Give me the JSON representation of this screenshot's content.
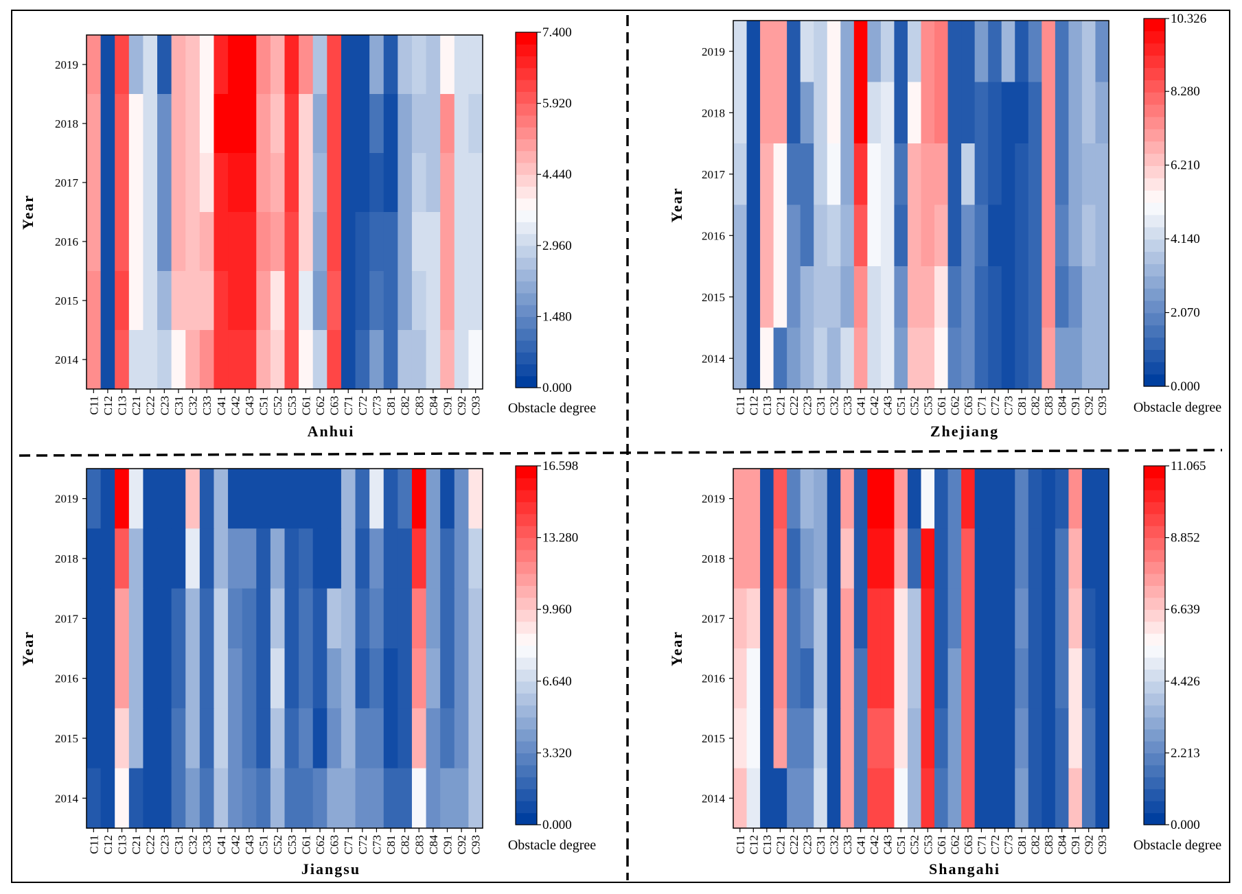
{
  "chart_data": [
    {
      "type": "heatmap",
      "title": "Anhui",
      "ylabel": "Year",
      "colorbar_label": "Obstacle degree",
      "colorbar_ticks": [
        "0.000",
        "1.480",
        "2.960",
        "4.440",
        "5.920",
        "7.400"
      ],
      "vmin": 0,
      "vmax": 7.4,
      "x": [
        "C11",
        "C12",
        "C13",
        "C21",
        "C22",
        "C23",
        "C31",
        "C32",
        "C33",
        "C41",
        "C42",
        "C43",
        "C51",
        "C52",
        "C53",
        "C61",
        "C62",
        "C63",
        "C71",
        "C72",
        "C73",
        "C81",
        "C82",
        "C83",
        "C84",
        "C91",
        "C92",
        "C93"
      ],
      "y": [
        "2019",
        "2018",
        "2017",
        "2016",
        "2015",
        "2014"
      ],
      "z": [
        [
          5.4,
          0.3,
          6.2,
          2.4,
          3.0,
          0.5,
          4.9,
          4.6,
          3.7,
          6.8,
          7.3,
          7.3,
          5.2,
          4.8,
          6.8,
          5.2,
          2.6,
          6.2,
          0.3,
          0.3,
          2.0,
          0.6,
          2.5,
          2.8,
          2.7,
          3.8,
          3.2,
          3.0
        ],
        [
          5.0,
          0.3,
          6.0,
          3.8,
          3.2,
          1.5,
          4.8,
          4.5,
          3.8,
          7.2,
          7.3,
          7.3,
          5.0,
          4.6,
          6.6,
          4.2,
          2.0,
          6.3,
          0.3,
          0.3,
          1.2,
          0.4,
          2.0,
          2.5,
          2.7,
          5.2,
          3.1,
          2.9
        ],
        [
          5.0,
          0.3,
          6.0,
          3.8,
          3.2,
          1.6,
          4.8,
          4.6,
          4.0,
          6.8,
          7.0,
          7.1,
          5.1,
          4.8,
          6.5,
          4.3,
          2.4,
          6.4,
          0.3,
          0.3,
          0.6,
          0.4,
          2.2,
          2.8,
          2.7,
          5.0,
          3.1,
          3.0
        ],
        [
          5.1,
          0.3,
          6.1,
          3.8,
          3.2,
          1.6,
          4.8,
          4.6,
          4.8,
          6.7,
          6.9,
          6.9,
          5.3,
          5.0,
          6.3,
          4.3,
          2.0,
          6.3,
          0.3,
          0.5,
          0.9,
          0.9,
          2.2,
          3.0,
          3.2,
          5.1,
          3.2,
          3.2
        ],
        [
          5.2,
          0.3,
          6.2,
          3.9,
          3.0,
          2.4,
          4.5,
          4.5,
          4.5,
          6.6,
          6.8,
          6.8,
          5.0,
          4.0,
          6.4,
          3.4,
          1.8,
          6.0,
          0.3,
          0.7,
          1.2,
          0.8,
          2.2,
          2.8,
          3.0,
          5.0,
          3.1,
          3.0
        ],
        [
          5.3,
          0.3,
          6.0,
          3.2,
          3.2,
          2.8,
          3.9,
          4.8,
          5.2,
          6.5,
          6.6,
          6.6,
          4.9,
          4.2,
          6.4,
          3.7,
          2.9,
          6.2,
          0.4,
          0.8,
          1.8,
          0.9,
          2.5,
          2.6,
          3.0,
          4.8,
          3.1,
          3.6
        ]
      ]
    },
    {
      "type": "heatmap",
      "title": "Zhejiang",
      "ylabel": "Year",
      "colorbar_label": "Obstacle degree",
      "colorbar_ticks": [
        "0.000",
        "2.070",
        "4.140",
        "6.210",
        "8.280",
        "10.326"
      ],
      "vmin": 0,
      "vmax": 10.326,
      "x": [
        "C11",
        "C12",
        "C13",
        "C21",
        "C22",
        "C23",
        "C31",
        "C32",
        "C33",
        "C41",
        "C42",
        "C43",
        "C51",
        "C52",
        "C53",
        "C61",
        "C62",
        "C63",
        "C71",
        "C72",
        "C73",
        "C81",
        "C82",
        "C83",
        "C84",
        "C91",
        "C92",
        "C93"
      ],
      "y": [
        "2019",
        "2018",
        "2017",
        "2016",
        "2015",
        "2014"
      ],
      "z": [
        [
          4.4,
          0.5,
          7.0,
          7.0,
          1.0,
          4.3,
          3.8,
          5.5,
          2.8,
          10.3,
          2.8,
          4.0,
          1.0,
          4.0,
          7.3,
          7.8,
          0.8,
          0.8,
          2.6,
          1.1,
          3.1,
          0.8,
          2.0,
          7.4,
          1.4,
          3.0,
          3.6,
          2.4
        ],
        [
          4.4,
          0.5,
          6.9,
          6.9,
          1.0,
          2.6,
          3.8,
          5.3,
          2.8,
          10.3,
          4.2,
          4.8,
          0.7,
          5.5,
          7.3,
          7.6,
          0.8,
          0.8,
          1.2,
          0.7,
          0.6,
          0.6,
          1.2,
          7.4,
          1.5,
          2.8,
          3.6,
          2.8
        ],
        [
          3.8,
          0.5,
          6.6,
          5.5,
          1.4,
          1.6,
          3.8,
          4.9,
          2.8,
          9.0,
          5.0,
          4.8,
          1.6,
          6.8,
          7.0,
          7.2,
          0.7,
          4.0,
          1.1,
          0.7,
          0.6,
          0.7,
          1.3,
          7.4,
          1.6,
          3.0,
          3.4,
          3.2
        ],
        [
          3.2,
          0.5,
          6.8,
          5.5,
          2.4,
          1.4,
          3.6,
          4.0,
          3.1,
          8.6,
          5.0,
          4.8,
          1.3,
          6.6,
          7.0,
          6.8,
          0.8,
          2.4,
          1.4,
          0.6,
          0.5,
          0.7,
          1.3,
          7.4,
          2.0,
          2.8,
          3.6,
          3.2
        ],
        [
          3.2,
          0.5,
          6.6,
          5.4,
          2.4,
          3.4,
          3.6,
          3.6,
          3.0,
          7.4,
          4.4,
          4.5,
          2.2,
          6.6,
          6.6,
          5.8,
          1.4,
          2.4,
          1.3,
          0.7,
          0.6,
          0.8,
          1.2,
          7.3,
          1.6,
          2.4,
          3.2,
          3.2
        ],
        [
          3.2,
          0.5,
          5.5,
          1.6,
          2.6,
          3.4,
          3.8,
          3.4,
          4.2,
          7.2,
          4.4,
          4.5,
          2.5,
          6.4,
          6.4,
          5.4,
          1.8,
          2.2,
          1.3,
          0.7,
          0.6,
          0.8,
          1.2,
          7.2,
          2.6,
          2.6,
          3.2,
          3.2
        ]
      ]
    },
    {
      "type": "heatmap",
      "title": "Jiangsu",
      "ylabel": "Year",
      "colorbar_label": "Obstacle degree",
      "colorbar_ticks": [
        "0.000",
        "3.320",
        "6.640",
        "9.960",
        "13.280",
        "16.598"
      ],
      "vmin": 0,
      "vmax": 16.598,
      "x": [
        "C11",
        "C12",
        "C13",
        "C21",
        "C22",
        "C23",
        "C31",
        "C32",
        "C33",
        "C41",
        "C42",
        "C43",
        "C51",
        "C52",
        "C53",
        "C61",
        "C62",
        "C63",
        "C71",
        "C72",
        "C73",
        "C81",
        "C82",
        "C83",
        "C84",
        "C91",
        "C92",
        "C93"
      ],
      "y": [
        "2019",
        "2018",
        "2017",
        "2016",
        "2015",
        "2014"
      ],
      "z": [
        [
          2.0,
          1.0,
          16.6,
          7.6,
          1.0,
          1.0,
          1.0,
          10.4,
          1.2,
          5.2,
          1.0,
          1.0,
          1.0,
          1.0,
          1.0,
          1.0,
          1.0,
          1.0,
          5.4,
          1.8,
          7.4,
          1.2,
          2.4,
          16.6,
          4.4,
          1.0,
          3.4,
          9.4
        ],
        [
          1.0,
          1.0,
          13.5,
          5.0,
          1.0,
          1.0,
          1.0,
          7.4,
          1.2,
          5.4,
          3.6,
          3.6,
          1.4,
          4.8,
          1.4,
          2.0,
          1.0,
          1.0,
          5.4,
          1.6,
          3.8,
          1.2,
          1.4,
          14.6,
          4.2,
          1.8,
          3.6,
          6.6
        ],
        [
          1.0,
          1.0,
          11.5,
          5.0,
          1.0,
          1.0,
          2.0,
          5.4,
          2.0,
          6.4,
          3.2,
          2.4,
          1.2,
          6.0,
          1.4,
          2.6,
          1.2,
          5.6,
          5.4,
          1.8,
          2.8,
          1.2,
          1.4,
          12.5,
          4.4,
          2.0,
          3.4,
          5.6
        ],
        [
          1.0,
          1.0,
          11.5,
          5.0,
          1.0,
          1.0,
          2.0,
          5.4,
          2.0,
          6.6,
          3.4,
          2.4,
          1.2,
          6.8,
          1.4,
          2.6,
          1.2,
          4.4,
          5.4,
          1.4,
          2.6,
          1.0,
          1.6,
          12.0,
          4.6,
          2.0,
          3.6,
          5.6
        ],
        [
          1.0,
          1.0,
          9.6,
          5.0,
          1.0,
          1.0,
          2.4,
          5.0,
          2.0,
          6.2,
          3.4,
          2.6,
          1.2,
          5.6,
          1.8,
          2.8,
          1.0,
          3.8,
          5.4,
          2.8,
          3.0,
          1.0,
          1.6,
          10.6,
          3.6,
          2.6,
          3.6,
          5.6
        ],
        [
          1.4,
          1.0,
          8.4,
          1.2,
          1.0,
          1.0,
          2.4,
          4.4,
          2.4,
          6.0,
          3.6,
          3.0,
          2.6,
          5.4,
          2.6,
          2.6,
          2.8,
          4.6,
          4.6,
          3.8,
          3.4,
          1.8,
          1.8,
          8.2,
          3.8,
          4.0,
          4.0,
          5.6
        ]
      ]
    },
    {
      "type": "heatmap",
      "title": "Shangahi",
      "ylabel": "Year",
      "colorbar_label": "Obstacle degree",
      "colorbar_ticks": [
        "0.000",
        "2.213",
        "4.426",
        "6.639",
        "8.852",
        "11.065"
      ],
      "vmin": 0,
      "vmax": 11.065,
      "x": [
        "C11",
        "C12",
        "C13",
        "C21",
        "C22",
        "C23",
        "C31",
        "C32",
        "C33",
        "C41",
        "C42",
        "C43",
        "C51",
        "C52",
        "C53",
        "C61",
        "C62",
        "C63",
        "C71",
        "C72",
        "C73",
        "C81",
        "C82",
        "C83",
        "C84",
        "C91",
        "C92",
        "C93"
      ],
      "y": [
        "2019",
        "2018",
        "2017",
        "2016",
        "2015",
        "2014"
      ],
      "z": [
        [
          7.6,
          7.6,
          0.5,
          9.0,
          2.0,
          3.4,
          3.2,
          0.6,
          7.6,
          0.8,
          11.0,
          11.0,
          7.6,
          0.6,
          5.5,
          0.8,
          2.0,
          10.0,
          0.6,
          0.6,
          0.6,
          2.0,
          1.0,
          0.6,
          1.0,
          7.8,
          0.6,
          0.6
        ],
        [
          7.4,
          7.4,
          0.5,
          8.6,
          1.4,
          2.8,
          3.2,
          0.6,
          7.0,
          0.8,
          10.5,
          10.5,
          7.2,
          1.2,
          10.6,
          0.8,
          2.0,
          9.2,
          0.6,
          0.6,
          0.6,
          2.0,
          0.8,
          0.6,
          1.6,
          7.2,
          0.6,
          0.6
        ],
        [
          6.8,
          6.4,
          0.5,
          8.0,
          1.6,
          2.4,
          3.8,
          0.6,
          7.4,
          0.8,
          9.8,
          9.8,
          6.0,
          3.8,
          10.2,
          0.8,
          2.0,
          9.2,
          0.6,
          0.6,
          0.6,
          2.4,
          0.8,
          0.6,
          1.6,
          6.8,
          1.0,
          0.6
        ],
        [
          6.4,
          5.2,
          0.5,
          7.8,
          1.6,
          1.4,
          4.0,
          0.6,
          7.6,
          1.6,
          9.6,
          9.6,
          6.0,
          3.8,
          10.0,
          1.0,
          2.8,
          9.2,
          0.6,
          0.6,
          0.6,
          2.2,
          0.8,
          0.6,
          1.6,
          6.2,
          1.2,
          0.6
        ],
        [
          6.0,
          5.2,
          0.5,
          7.4,
          2.0,
          2.2,
          4.2,
          0.6,
          7.4,
          1.6,
          9.0,
          9.0,
          6.0,
          3.6,
          10.2,
          1.4,
          2.6,
          9.2,
          0.6,
          0.6,
          0.6,
          2.4,
          0.8,
          0.6,
          1.4,
          6.0,
          1.6,
          0.6
        ],
        [
          6.8,
          5.0,
          0.5,
          0.6,
          2.4,
          2.4,
          4.6,
          0.6,
          7.6,
          1.6,
          9.4,
          9.4,
          5.4,
          3.6,
          9.6,
          1.6,
          2.6,
          9.2,
          0.6,
          0.6,
          0.6,
          2.6,
          1.0,
          0.6,
          1.4,
          6.8,
          1.6,
          0.6
        ]
      ]
    }
  ]
}
